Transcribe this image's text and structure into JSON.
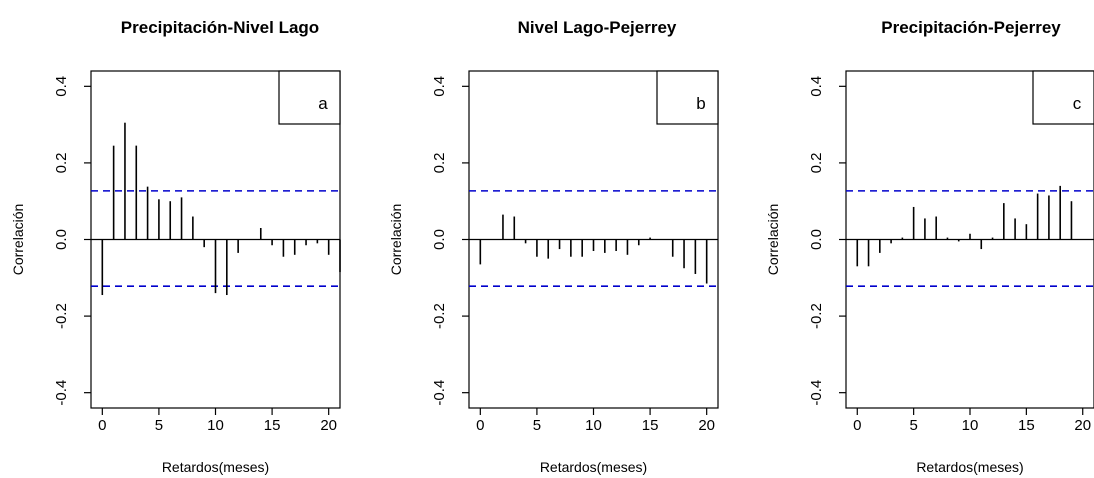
{
  "chart_data": [
    {
      "type": "bar",
      "title": "Precipitación-Nivel Lago",
      "panel_label": "a",
      "xlabel": "Retardos(meses)",
      "ylabel": "Correlación",
      "xlim": [
        -1,
        21
      ],
      "ylim": [
        -0.44,
        0.44
      ],
      "xticks": [
        "0",
        "5",
        "10",
        "15",
        "20"
      ],
      "yticks": [
        "-0.4",
        "-0.2",
        "0.0",
        "0.2",
        "0.4"
      ],
      "confidence_band": [
        0.127,
        -0.122
      ],
      "lags": [
        0,
        1,
        2,
        3,
        4,
        5,
        6,
        7,
        8,
        9,
        10,
        11,
        12,
        13,
        14,
        15,
        16,
        17,
        18,
        19,
        20,
        21
      ],
      "values": [
        -0.145,
        0.245,
        0.305,
        0.245,
        0.138,
        0.105,
        0.1,
        0.11,
        0.06,
        -0.02,
        -0.14,
        -0.145,
        -0.035,
        0.0,
        0.03,
        -0.015,
        -0.045,
        -0.04,
        -0.015,
        -0.01,
        -0.04,
        -0.085
      ]
    },
    {
      "type": "bar",
      "title": "Nivel Lago-Pejerrey",
      "panel_label": "b",
      "xlabel": "Retardos(meses)",
      "ylabel": "Correlación",
      "xlim": [
        -1,
        21
      ],
      "ylim": [
        -0.44,
        0.44
      ],
      "xticks": [
        "0",
        "5",
        "10",
        "15",
        "20"
      ],
      "yticks": [
        "-0.4",
        "-0.2",
        "0.0",
        "0.2",
        "0.4"
      ],
      "confidence_band": [
        0.127,
        -0.122
      ],
      "lags": [
        0,
        1,
        2,
        3,
        4,
        5,
        6,
        7,
        8,
        9,
        10,
        11,
        12,
        13,
        14,
        15,
        16,
        17,
        18,
        19,
        20
      ],
      "values": [
        -0.065,
        0.0,
        0.065,
        0.06,
        -0.01,
        -0.045,
        -0.05,
        -0.025,
        -0.045,
        -0.045,
        -0.03,
        -0.035,
        -0.03,
        -0.04,
        -0.015,
        0.005,
        0.0,
        -0.045,
        -0.075,
        -0.09,
        -0.115
      ]
    },
    {
      "type": "bar",
      "title": "Precipitación-Pejerrey",
      "panel_label": "c",
      "xlabel": "Retardos(meses)",
      "ylabel": "Correlación",
      "xlim": [
        -1,
        21
      ],
      "ylim": [
        -0.44,
        0.44
      ],
      "xticks": [
        "0",
        "5",
        "10",
        "15",
        "20"
      ],
      "yticks": [
        "-0.4",
        "-0.2",
        "0.0",
        "0.2",
        "0.4"
      ],
      "confidence_band": [
        0.127,
        -0.122
      ],
      "lags": [
        0,
        1,
        2,
        3,
        4,
        5,
        6,
        7,
        8,
        9,
        10,
        11,
        12,
        13,
        14,
        15,
        16,
        17,
        18,
        19,
        20
      ],
      "values": [
        -0.07,
        -0.07,
        -0.035,
        -0.01,
        0.005,
        0.085,
        0.055,
        0.06,
        0.005,
        -0.005,
        0.015,
        -0.025,
        0.005,
        0.095,
        0.055,
        0.04,
        0.12,
        0.115,
        0.14,
        0.1,
        0.0
      ]
    }
  ],
  "colors": {
    "bars": "#000000",
    "confidence_band": "#0000cc",
    "axes": "#000000"
  }
}
